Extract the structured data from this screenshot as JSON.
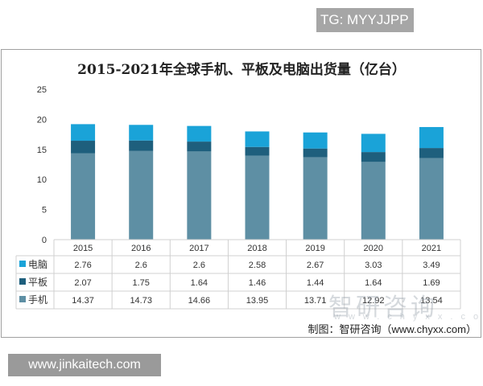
{
  "badge": "TG: MYYJJPP",
  "footer_site": "www.jinkaitech.com",
  "source": "制图：智研咨询（www.chyxx.com）",
  "watermark": "智研咨询",
  "watermark_url": "www.chyxx.com",
  "chart_data": {
    "type": "bar",
    "stacked": true,
    "title": "2015-2021年全球手机、平板及电脑出货量（亿台）",
    "categories": [
      "2015",
      "2016",
      "2017",
      "2018",
      "2019",
      "2020",
      "2021"
    ],
    "ylim": [
      0,
      25
    ],
    "yticks": [
      0,
      5,
      10,
      15,
      20,
      25
    ],
    "grid": false,
    "legend": "data-table",
    "series": [
      {
        "name": "手机",
        "color": "#5e8fa4",
        "values": [
          14.37,
          14.73,
          14.66,
          13.95,
          13.71,
          12.92,
          13.54
        ]
      },
      {
        "name": "平板",
        "color": "#1e5f7d",
        "values": [
          2.07,
          1.75,
          1.64,
          1.46,
          1.44,
          1.64,
          1.69
        ]
      },
      {
        "name": "电脑",
        "color": "#1aa3d8",
        "values": [
          2.76,
          2.6,
          2.6,
          2.58,
          2.67,
          3.03,
          3.49
        ]
      }
    ],
    "table_order": [
      "电脑",
      "平板",
      "手机"
    ]
  }
}
